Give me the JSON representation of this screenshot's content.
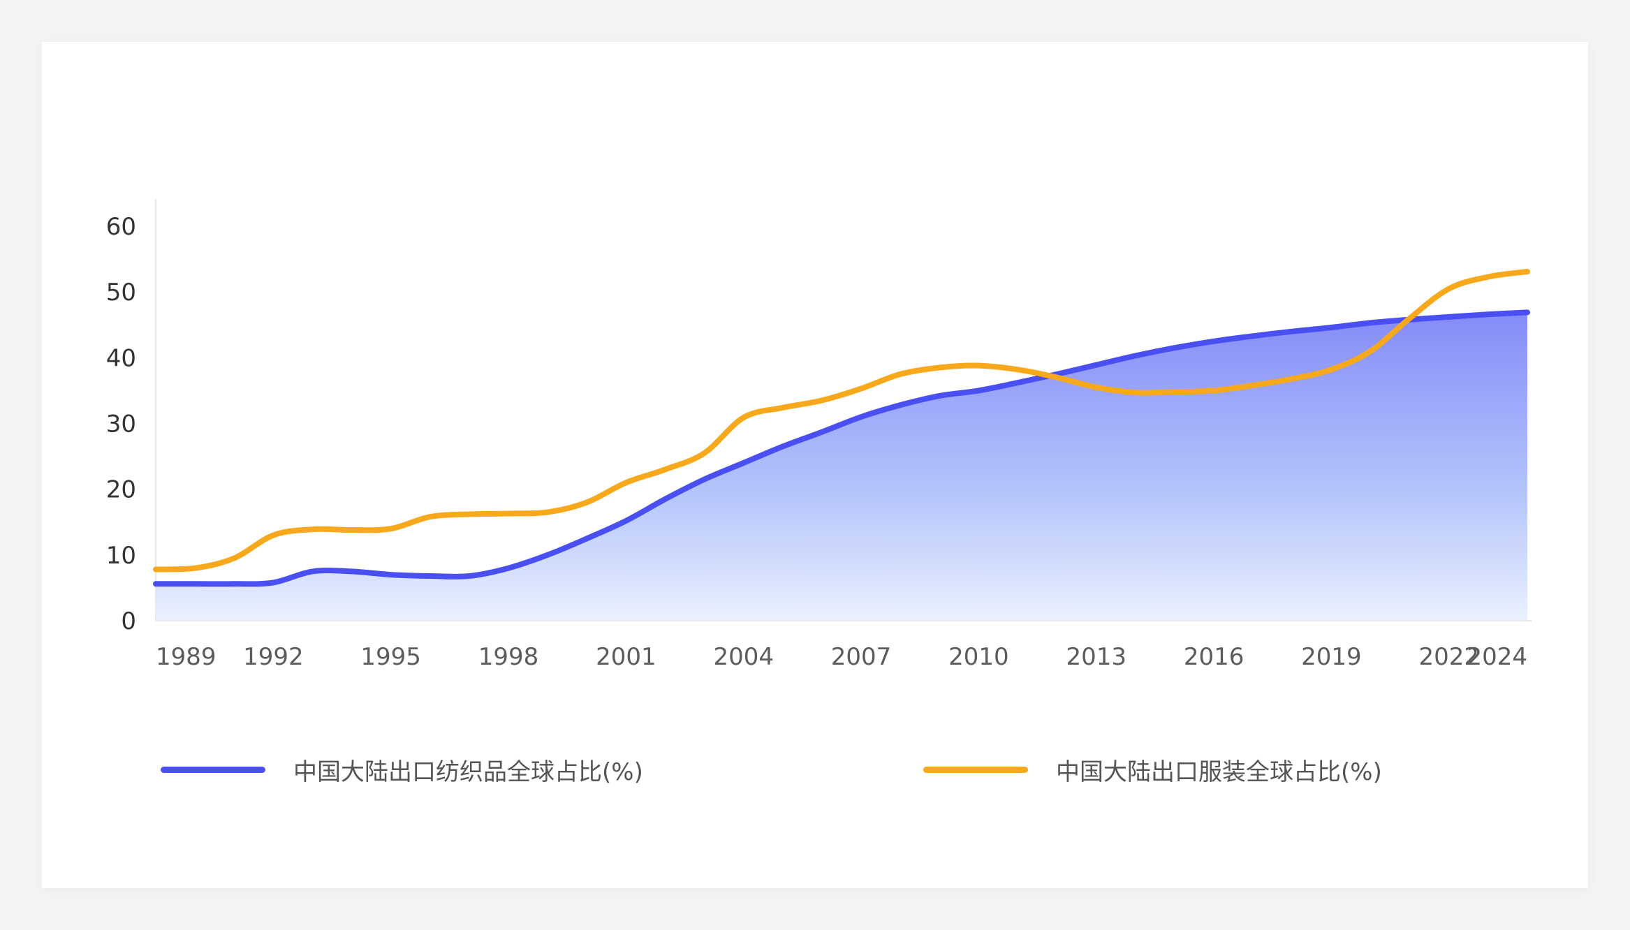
{
  "chart_data": {
    "type": "area",
    "x": [
      1989,
      1990,
      1991,
      1992,
      1993,
      1994,
      1995,
      1996,
      1997,
      1998,
      1999,
      2000,
      2001,
      2002,
      2003,
      2004,
      2005,
      2006,
      2007,
      2008,
      2009,
      2010,
      2011,
      2012,
      2013,
      2014,
      2015,
      2016,
      2017,
      2018,
      2019,
      2020,
      2021,
      2022,
      2023,
      2024
    ],
    "x_tick_labels": [
      "1989",
      "1992",
      "1995",
      "1998",
      "2001",
      "2004",
      "2007",
      "2010",
      "2013",
      "2016",
      "2019",
      "2022",
      "2024"
    ],
    "y_tick_labels": [
      "0",
      "10",
      "20",
      "30",
      "40",
      "50",
      "60"
    ],
    "ylim": [
      0,
      60
    ],
    "series": [
      {
        "name": "中国大陆出口纺织品全球占比(%)",
        "color": "#4a4ff2",
        "fill": "gradient",
        "values": [
          5.6,
          5.6,
          5.6,
          5.8,
          7.5,
          7.5,
          7.0,
          6.8,
          6.8,
          8.0,
          10.0,
          12.5,
          15.2,
          18.5,
          21.5,
          24.0,
          26.5,
          28.7,
          31.0,
          32.8,
          34.2,
          35.0,
          36.2,
          37.5,
          38.9,
          40.3,
          41.5,
          42.5,
          43.3,
          44.0,
          44.6,
          45.3,
          45.8,
          46.2,
          46.6,
          46.9
        ]
      },
      {
        "name": "中国大陆出口服装全球占比(%)",
        "color": "#f7a81b",
        "fill": "none",
        "values": [
          7.8,
          8.0,
          9.5,
          13.0,
          13.9,
          13.8,
          14.0,
          15.8,
          16.2,
          16.3,
          16.5,
          18.0,
          21.0,
          23.0,
          25.5,
          30.9,
          32.4,
          33.5,
          35.3,
          37.5,
          38.5,
          38.8,
          38.2,
          37.0,
          35.5,
          34.7,
          34.8,
          35.0,
          35.8,
          36.8,
          38.2,
          41.0,
          46.0,
          50.5,
          52.3,
          53.1
        ]
      }
    ]
  }
}
